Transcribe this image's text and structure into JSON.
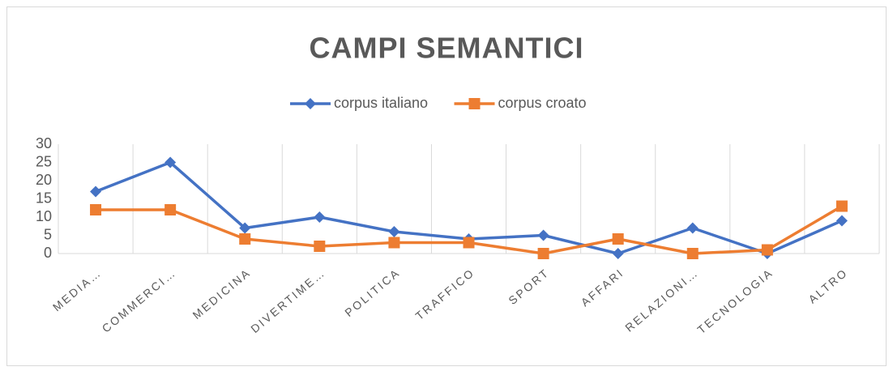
{
  "chart_data": {
    "type": "line",
    "title": "CAMPI SEMANTICI",
    "categories": [
      "MEDIA…",
      "COMMERCI…",
      "MEDICINA",
      "DIVERTIME…",
      "POLITICA",
      "TRAFFICO",
      "SPORT",
      "AFFARI",
      "RELAZIONI…",
      "TECNOLOGIA",
      "ALTRO"
    ],
    "series": [
      {
        "name": "corpus italiano",
        "color": "#4472c4",
        "marker": "diamond",
        "values": [
          17,
          25,
          7,
          10,
          6,
          4,
          5,
          0,
          7,
          0,
          9
        ]
      },
      {
        "name": "corpus croato",
        "color": "#ed7d31",
        "marker": "square",
        "values": [
          12,
          12,
          4,
          2,
          3,
          3,
          0,
          4,
          0,
          1,
          13
        ]
      }
    ],
    "ylim": [
      0,
      30
    ],
    "yticks": [
      0,
      5,
      10,
      15,
      20,
      25,
      30
    ],
    "grid": false,
    "legend": "top"
  }
}
